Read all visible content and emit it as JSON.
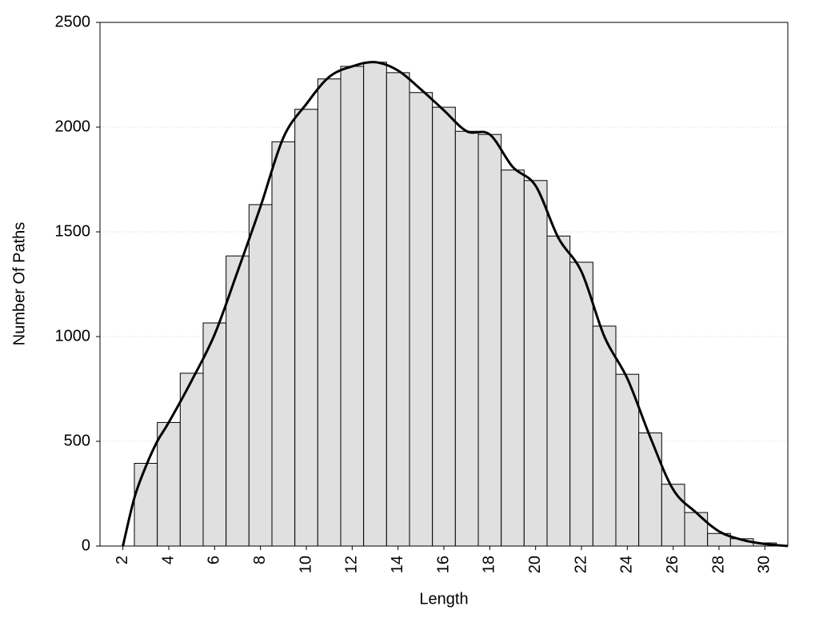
{
  "chart_data": {
    "type": "histogram",
    "xlabel": "Length",
    "ylabel": "Number Of Paths",
    "bins": [
      2.5,
      3.5,
      4.5,
      5.5,
      6.5,
      7.5,
      8.5,
      9.5,
      10.5,
      11.5,
      12.5,
      13.5,
      14.5,
      15.5,
      16.5,
      17.5,
      18.5,
      19.5,
      20.5,
      21.5,
      22.5,
      23.5,
      24.5,
      25.5,
      26.5,
      27.5,
      28.5,
      29.5,
      30.5
    ],
    "counts": [
      395,
      590,
      825,
      1065,
      1385,
      1630,
      1930,
      2085,
      2230,
      2290,
      2310,
      2260,
      2165,
      2095,
      1980,
      1965,
      1795,
      1745,
      1480,
      1355,
      1050,
      820,
      540,
      295,
      160,
      60,
      35,
      15
    ],
    "color": "#e0e0e0",
    "line": {
      "color": "#000000",
      "x": [
        2,
        2.5,
        3,
        3.5,
        4,
        5,
        6,
        7,
        8,
        9,
        10,
        11,
        12,
        13,
        14,
        15,
        16,
        17,
        18,
        19,
        20,
        21,
        22,
        23,
        24,
        25,
        26,
        27,
        28,
        29,
        30,
        31
      ],
      "values": [
        0,
        230,
        380,
        500,
        590,
        790,
        1010,
        1310,
        1620,
        1950,
        2110,
        2240,
        2290,
        2310,
        2270,
        2180,
        2080,
        1980,
        1965,
        1810,
        1720,
        1470,
        1310,
        1000,
        800,
        520,
        270,
        160,
        70,
        30,
        10,
        0
      ]
    },
    "xlim": [
      1,
      31
    ],
    "ylim": [
      0,
      2500
    ],
    "xticks": [
      2,
      4,
      6,
      8,
      10,
      12,
      14,
      16,
      18,
      20,
      22,
      24,
      26,
      28,
      30
    ],
    "yticks": [
      0,
      500,
      1000,
      1500,
      2000,
      2500
    ],
    "grid": true
  }
}
